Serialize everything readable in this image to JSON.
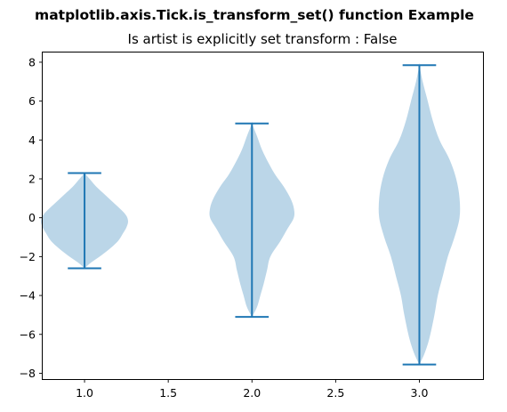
{
  "suptitle": "matplotlib.axis.Tick.is_transform_set() function Example",
  "title": "Is artist is explicitly set transform : False",
  "colors": {
    "violin_fill": "#1f77b4",
    "violin_lines": "#1f77b4",
    "axes_frame": "#000000"
  },
  "chart_data": {
    "type": "violin",
    "title": "Is artist is explicitly set transform : False",
    "xlabel": "",
    "ylabel": "",
    "xlim": [
      0.75,
      3.38
    ],
    "ylim": [
      -8.3,
      8.5
    ],
    "xticks": [
      1.0,
      1.5,
      2.0,
      2.5,
      3.0
    ],
    "xtick_labels": [
      "1.0",
      "1.5",
      "2.0",
      "2.5",
      "3.0"
    ],
    "yticks": [
      -8,
      -6,
      -4,
      -2,
      0,
      2,
      4,
      6,
      8
    ],
    "ytick_labels": [
      "−8",
      "−6",
      "−4",
      "−2",
      "0",
      "2",
      "4",
      "6",
      "8"
    ],
    "grid": false,
    "legend": "none",
    "violins": [
      {
        "position": 1.0,
        "min": -2.6,
        "max": 2.3,
        "profile": [
          [
            -2.6,
            0.0
          ],
          [
            -2.3,
            0.04
          ],
          [
            -2.0,
            0.09
          ],
          [
            -1.6,
            0.15
          ],
          [
            -1.2,
            0.2
          ],
          [
            -0.8,
            0.23
          ],
          [
            -0.5,
            0.25
          ],
          [
            -0.2,
            0.26
          ],
          [
            0.1,
            0.25
          ],
          [
            0.4,
            0.22
          ],
          [
            0.8,
            0.17
          ],
          [
            1.2,
            0.12
          ],
          [
            1.6,
            0.07
          ],
          [
            2.0,
            0.03
          ],
          [
            2.3,
            0.0
          ]
        ]
      },
      {
        "position": 2.0,
        "min": -5.1,
        "max": 4.85,
        "profile": [
          [
            -5.1,
            0.0
          ],
          [
            -4.6,
            0.03
          ],
          [
            -4.0,
            0.05
          ],
          [
            -3.4,
            0.07
          ],
          [
            -2.7,
            0.09
          ],
          [
            -2.0,
            0.11
          ],
          [
            -1.2,
            0.17
          ],
          [
            -0.6,
            0.21
          ],
          [
            0.0,
            0.25
          ],
          [
            0.5,
            0.25
          ],
          [
            1.0,
            0.23
          ],
          [
            1.6,
            0.19
          ],
          [
            2.2,
            0.14
          ],
          [
            2.8,
            0.1
          ],
          [
            3.5,
            0.06
          ],
          [
            4.2,
            0.03
          ],
          [
            4.85,
            0.0
          ]
        ]
      },
      {
        "position": 3.0,
        "min": -7.55,
        "max": 7.85,
        "profile": [
          [
            -7.55,
            0.0
          ],
          [
            -7.0,
            0.03
          ],
          [
            -6.2,
            0.06
          ],
          [
            -5.0,
            0.09
          ],
          [
            -4.0,
            0.11
          ],
          [
            -3.0,
            0.14
          ],
          [
            -2.0,
            0.17
          ],
          [
            -1.0,
            0.21
          ],
          [
            0.0,
            0.24
          ],
          [
            1.0,
            0.24
          ],
          [
            2.0,
            0.22
          ],
          [
            3.0,
            0.18
          ],
          [
            4.0,
            0.12
          ],
          [
            5.0,
            0.08
          ],
          [
            6.0,
            0.05
          ],
          [
            7.0,
            0.02
          ],
          [
            7.85,
            0.0
          ]
        ]
      }
    ]
  }
}
